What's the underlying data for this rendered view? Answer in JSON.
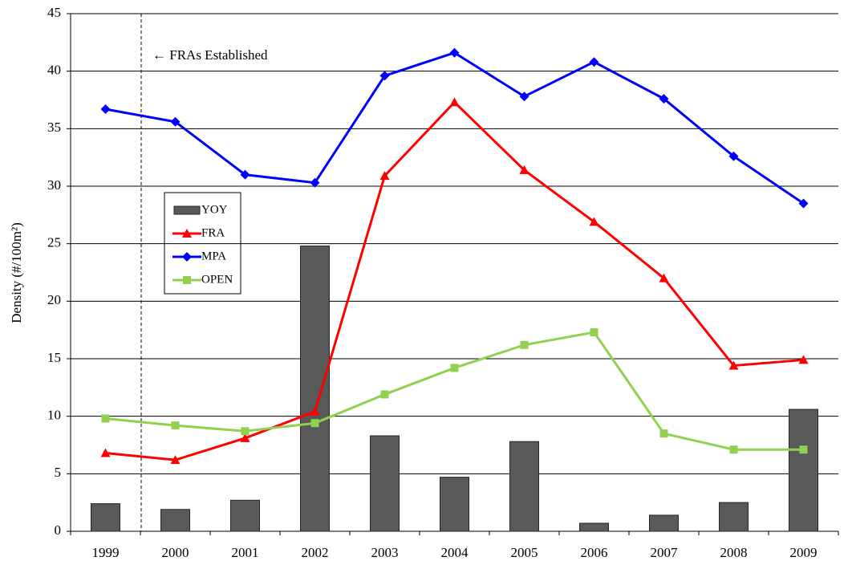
{
  "chart_data": {
    "type": "combo",
    "y_label": "Density (#/100m²)",
    "annotation": "← FRAs Established",
    "categories": [
      "1999",
      "2000",
      "2001",
      "2002",
      "2003",
      "2004",
      "2005",
      "2006",
      "2007",
      "2008",
      "2009"
    ],
    "series": [
      {
        "name": "YOY",
        "type": "bar",
        "color": "#595959",
        "values": [
          2.4,
          1.9,
          2.7,
          24.8,
          8.3,
          4.7,
          7.8,
          0.7,
          1.4,
          2.5,
          10.6
        ]
      },
      {
        "name": "FRA",
        "type": "line",
        "marker": "triangle",
        "color": "#ff0000",
        "values": [
          6.8,
          6.2,
          8.1,
          10.4,
          30.9,
          37.3,
          31.4,
          26.9,
          22.0,
          14.4,
          14.9
        ]
      },
      {
        "name": "MPA",
        "type": "line",
        "marker": "diamond",
        "color": "#0000ff",
        "values": [
          36.7,
          35.6,
          31.0,
          30.3,
          39.6,
          41.6,
          37.8,
          40.8,
          37.6,
          32.6,
          28.5
        ]
      },
      {
        "name": "OPEN",
        "type": "line",
        "marker": "square",
        "color": "#92d050",
        "values": [
          9.8,
          9.2,
          8.7,
          9.4,
          11.9,
          14.2,
          16.2,
          17.3,
          8.5,
          7.1,
          7.1
        ]
      }
    ],
    "ylim": [
      0,
      45
    ],
    "yticks": [
      0,
      5,
      10,
      15,
      20,
      25,
      30,
      35,
      40,
      45
    ],
    "grid": true
  }
}
